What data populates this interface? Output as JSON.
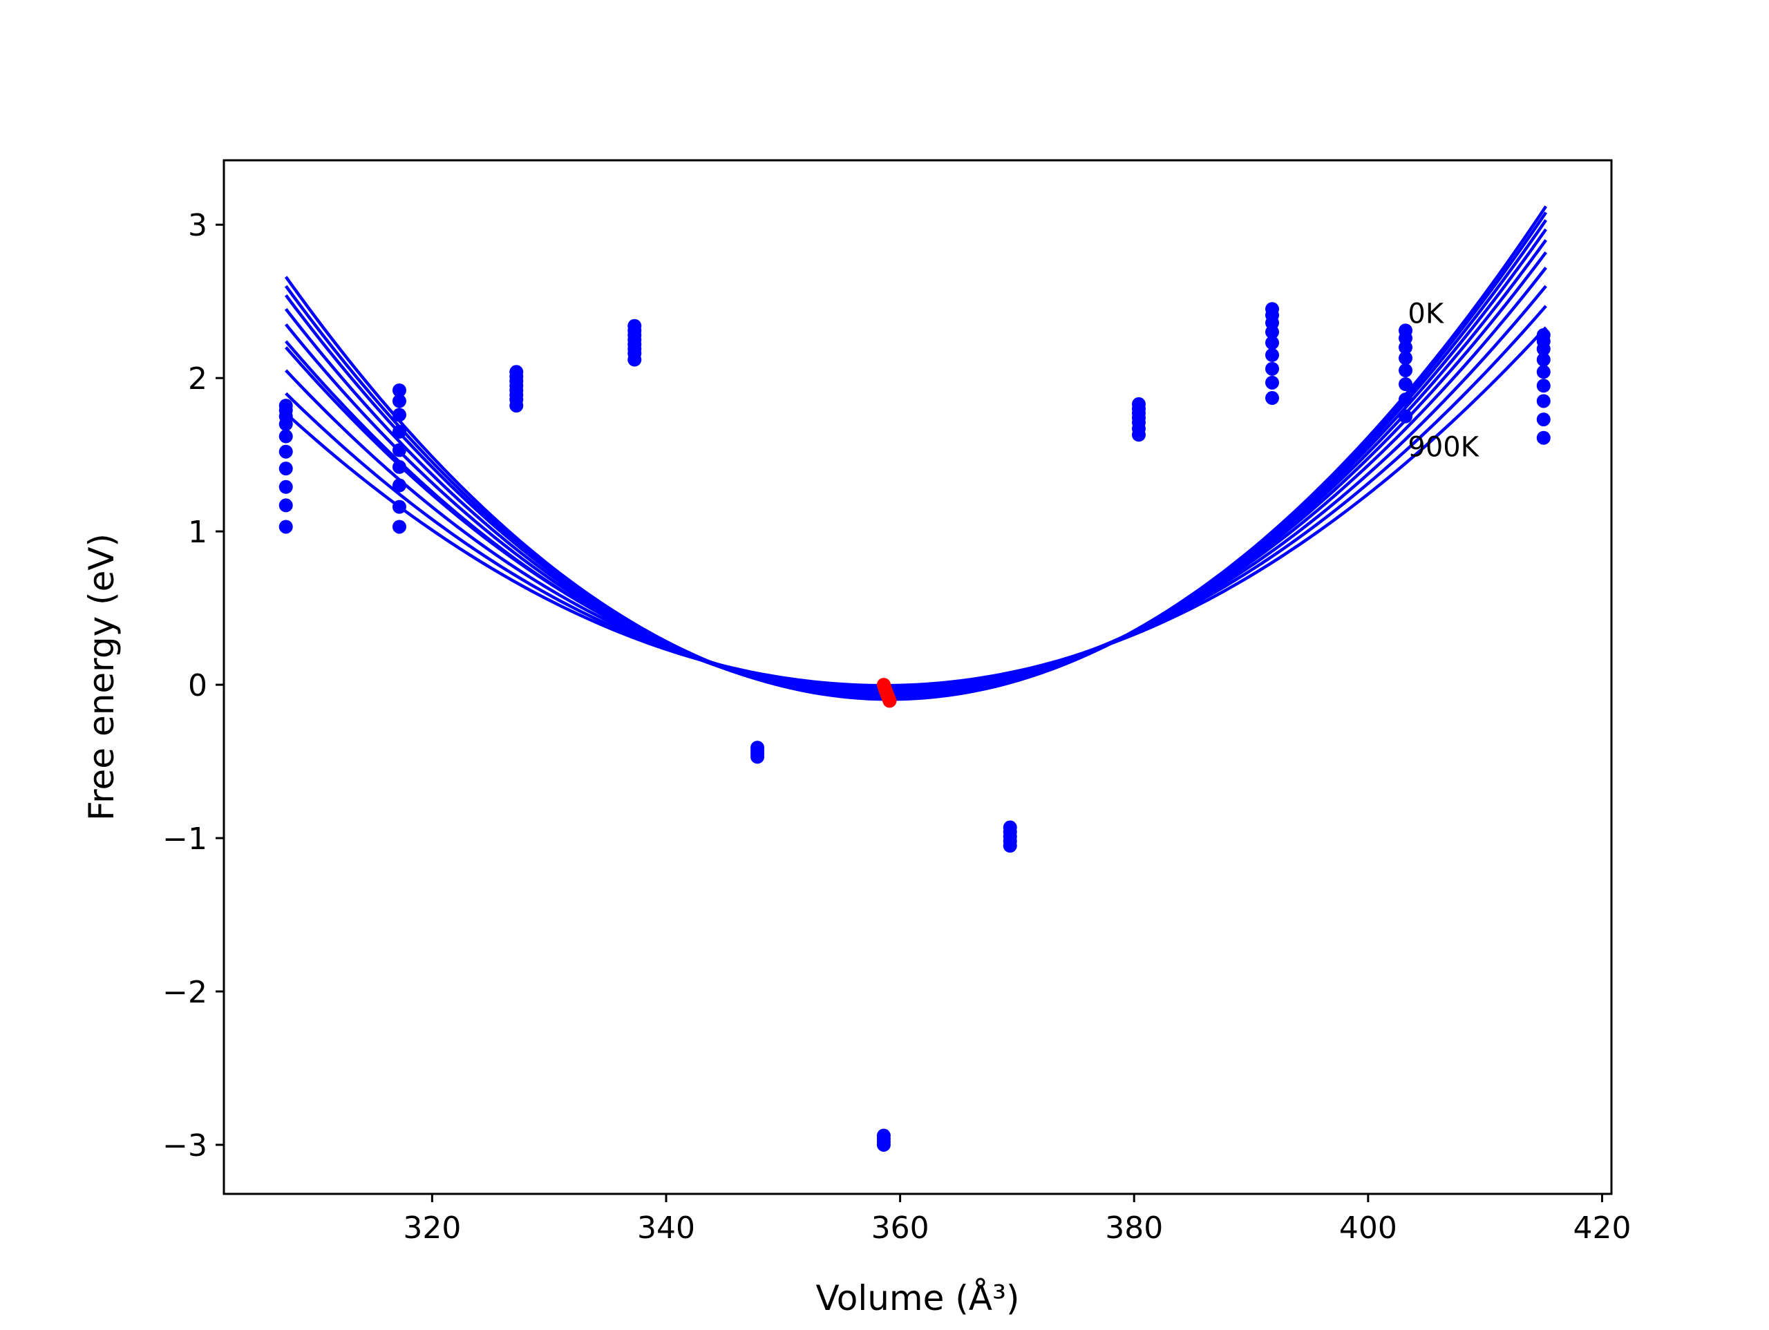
{
  "chart_data": {
    "type": "scatter",
    "title": "",
    "xlabel": "Volume (Å³)",
    "ylabel": "Free energy (eV)",
    "xlim": [
      302.2,
      420.8
    ],
    "ylim": [
      -3.32,
      3.42
    ],
    "grid": false,
    "legend": "none",
    "x_ticks": [
      {
        "value": 320,
        "label": "320"
      },
      {
        "value": 340,
        "label": "340"
      },
      {
        "value": 360,
        "label": "360"
      },
      {
        "value": 380,
        "label": "380"
      },
      {
        "value": 400,
        "label": "400"
      },
      {
        "value": 420,
        "label": "420"
      }
    ],
    "y_ticks": [
      {
        "value": 3,
        "label": "3"
      },
      {
        "value": 2,
        "label": "2"
      },
      {
        "value": 1,
        "label": "1"
      },
      {
        "value": 0,
        "label": "0"
      },
      {
        "value": -1,
        "label": "−1"
      },
      {
        "value": -2,
        "label": "−2"
      },
      {
        "value": -3,
        "label": "−3"
      }
    ],
    "annotations": [
      {
        "text": "0K",
        "x": 403.4,
        "y": 2.36
      },
      {
        "text": "900K",
        "x": 403.4,
        "y": 1.49
      }
    ],
    "colors": {
      "data_points": "#0000ff",
      "fit_curves": "#0000ff",
      "minima": "#ff0000"
    },
    "curve_x_range": [
      307.5,
      415.2
    ],
    "fit_curves": [
      {
        "v0": 359.1,
        "emin": -0.095,
        "left": 2.66,
        "right": 3.12
      },
      {
        "v0": 359.05,
        "emin": -0.092,
        "left": 2.6,
        "right": 3.08
      },
      {
        "v0": 359.0,
        "emin": -0.088,
        "left": 2.54,
        "right": 3.03
      },
      {
        "v0": 358.95,
        "emin": -0.08,
        "left": 2.45,
        "right": 2.97
      },
      {
        "v0": 358.9,
        "emin": -0.07,
        "left": 2.35,
        "right": 2.9
      },
      {
        "v0": 358.85,
        "emin": -0.058,
        "left": 2.24,
        "right": 2.82
      },
      {
        "v0": 358.8,
        "emin": -0.044,
        "left": 2.2,
        "right": 2.72
      },
      {
        "v0": 358.75,
        "emin": -0.03,
        "left": 2.05,
        "right": 2.6
      },
      {
        "v0": 358.7,
        "emin": -0.016,
        "left": 1.9,
        "right": 2.47
      },
      {
        "v0": 358.65,
        "emin": -0.005,
        "left": 1.77,
        "right": 2.33
      }
    ],
    "points": [
      {
        "x": 307.5,
        "y": [
          1.82,
          1.79,
          1.75,
          1.7,
          1.62,
          1.52,
          1.41,
          1.29,
          1.17,
          1.03
        ]
      },
      {
        "x": 317.2,
        "y": [
          1.92,
          1.85,
          1.76,
          1.65,
          1.53,
          1.42,
          1.3,
          1.16,
          1.03
        ]
      },
      {
        "x": 327.2,
        "y": [
          2.04,
          2.01,
          1.98,
          1.95,
          1.92,
          1.89,
          1.86,
          1.82
        ]
      },
      {
        "x": 337.3,
        "y": [
          2.34,
          2.31,
          2.28,
          2.25,
          2.22,
          2.19,
          2.16,
          2.12
        ]
      },
      {
        "x": 347.8,
        "y": [
          -0.41,
          -0.43,
          -0.45,
          -0.47
        ]
      },
      {
        "x": 358.6,
        "y": [
          -2.94,
          -2.96,
          -2.98,
          -3.0
        ]
      },
      {
        "x": 369.4,
        "y": [
          -0.93,
          -0.96,
          -0.99,
          -1.02,
          -1.05
        ]
      },
      {
        "x": 380.4,
        "y": [
          1.83,
          1.8,
          1.77,
          1.74,
          1.71,
          1.67,
          1.63
        ]
      },
      {
        "x": 391.8,
        "y": [
          2.45,
          2.41,
          2.36,
          2.3,
          2.23,
          2.15,
          2.06,
          1.97,
          1.87
        ]
      },
      {
        "x": 403.2,
        "y": [
          2.31,
          2.26,
          2.2,
          2.13,
          2.05,
          1.96,
          1.86,
          1.75
        ]
      },
      {
        "x": 415.0,
        "y": [
          2.28,
          2.24,
          2.19,
          2.12,
          2.04,
          1.95,
          1.85,
          1.73,
          1.61
        ]
      }
    ],
    "minima": [
      {
        "x": 358.6,
        "y": 0.0
      },
      {
        "x": 358.65,
        "y": -0.01
      },
      {
        "x": 358.7,
        "y": -0.025
      },
      {
        "x": 358.75,
        "y": -0.035
      },
      {
        "x": 358.8,
        "y": -0.045
      },
      {
        "x": 358.85,
        "y": -0.055
      },
      {
        "x": 358.9,
        "y": -0.065
      },
      {
        "x": 358.95,
        "y": -0.075
      },
      {
        "x": 359.0,
        "y": -0.085
      },
      {
        "x": 359.05,
        "y": -0.095
      },
      {
        "x": 359.1,
        "y": -0.105
      }
    ]
  }
}
